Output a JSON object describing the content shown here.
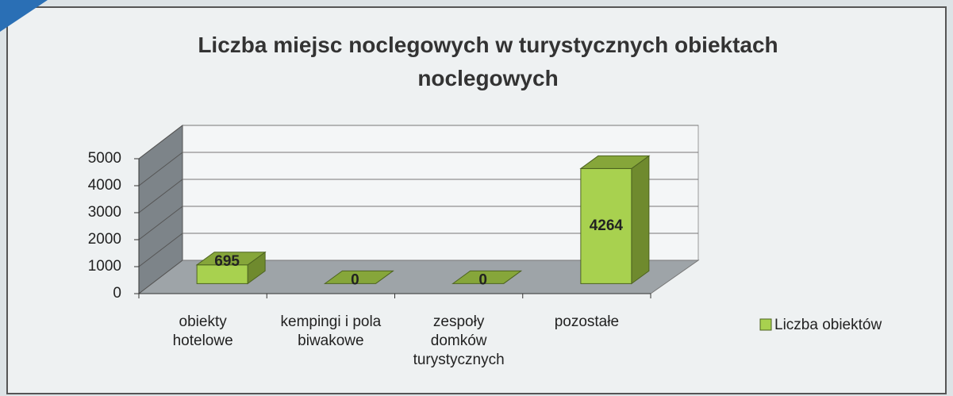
{
  "chart_data": {
    "type": "bar3d",
    "title": "Liczba miejsc noclegowych w turystycznych obiektach noclegowych",
    "categories": [
      "obiekty hotelowe",
      "kempingi i pola biwakowe",
      "zespoły domków turystycznych",
      "pozostałe"
    ],
    "series": [
      {
        "name": "Liczba obiektów",
        "color": "#9bbb59",
        "values": [
          695,
          0,
          0,
          4264
        ]
      }
    ],
    "ylim": [
      0,
      5000
    ],
    "yticks": [
      0,
      1000,
      2000,
      3000,
      4000,
      5000
    ],
    "grid": true,
    "legend": "right"
  }
}
